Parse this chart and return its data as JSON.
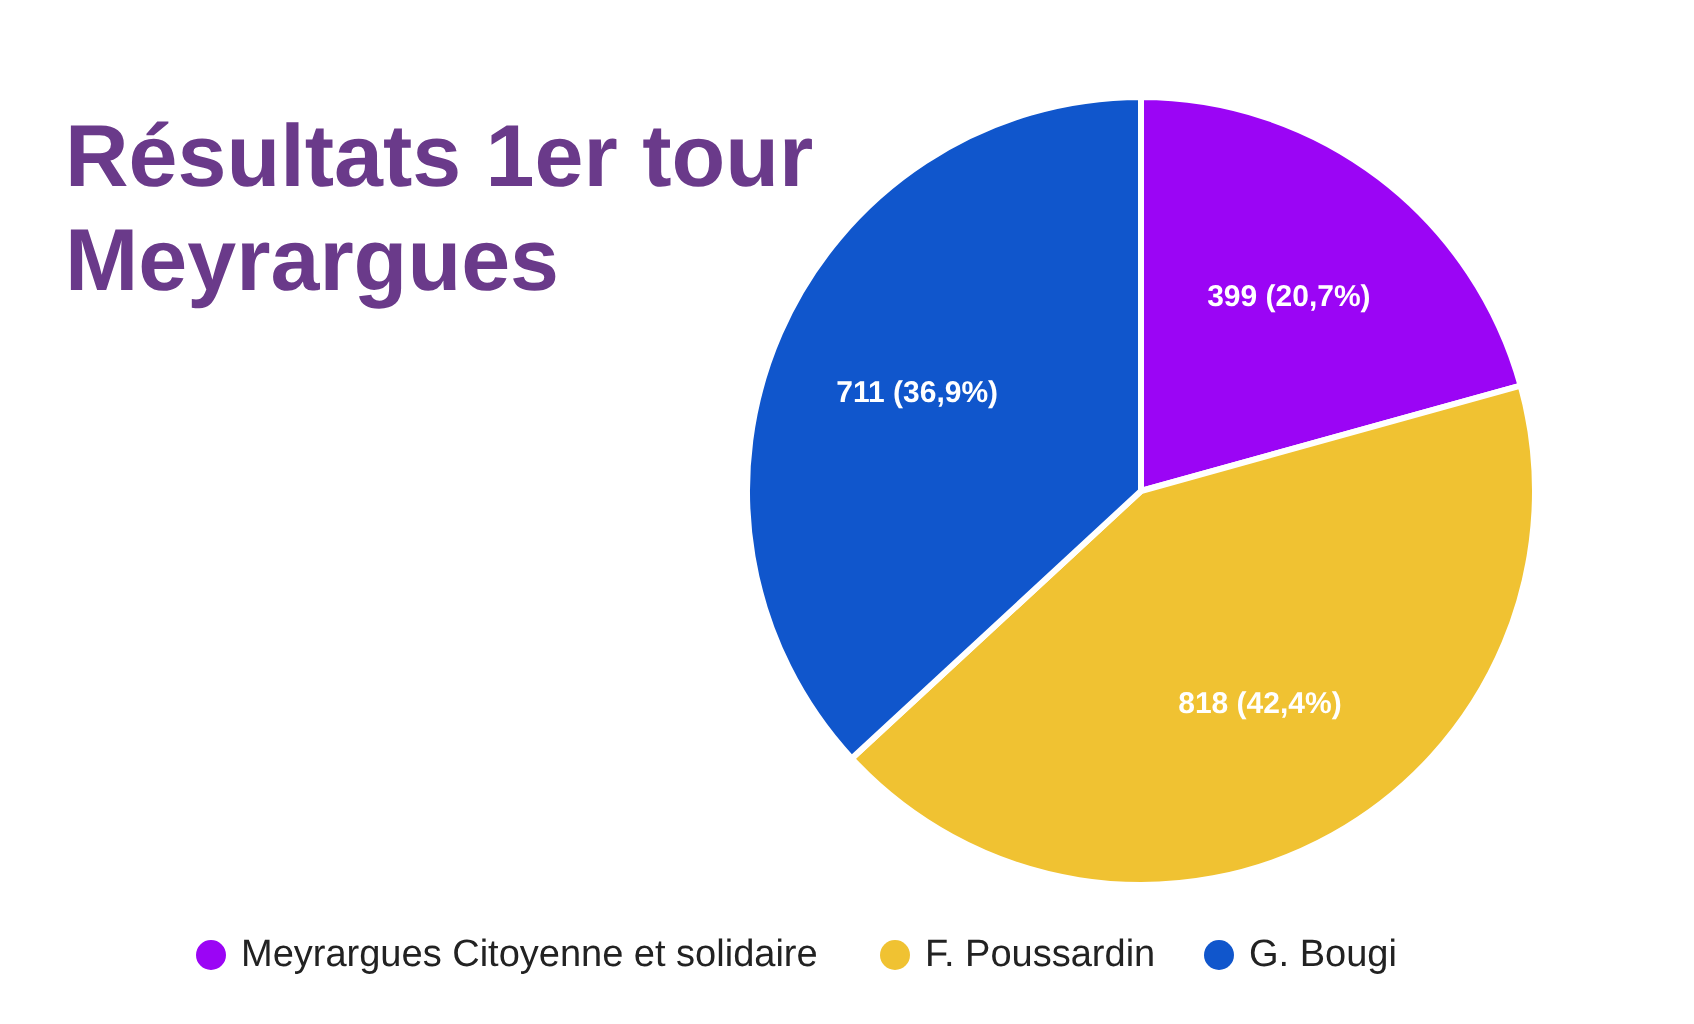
{
  "chart_data": {
    "type": "pie",
    "title": "Résultats 1er tour\nMeyrargues",
    "categories": [
      "Meyrargues Citoyenne et solidaire",
      "F. Poussardin",
      "G. Bougi"
    ],
    "values": [
      399,
      818,
      711
    ],
    "colors": [
      "#9b05f5",
      "#f0c232",
      "#1056cc"
    ],
    "value_labels": [
      "399 (20,7%)",
      "818 (42,4%)",
      "711 (36,9%)"
    ],
    "legend": "bottom"
  }
}
